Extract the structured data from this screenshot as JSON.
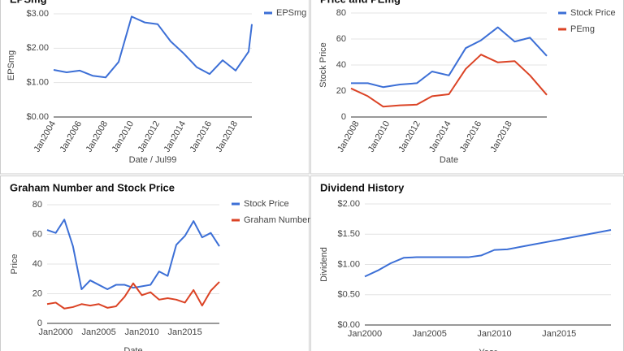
{
  "chart_data": [
    {
      "type": "line",
      "title": "EPSmg",
      "x_label": "Date / Jul99",
      "y_label": "EPSmg",
      "grid": true,
      "x": [
        2004,
        2005,
        2006,
        2007,
        2008,
        2009,
        2010,
        2011,
        2012,
        2013,
        2014,
        2015,
        2016,
        2017,
        2018,
        2019,
        2019.25
      ],
      "series": [
        {
          "name": "EPSmg",
          "color": "#3c6fd6",
          "values": [
            1.37,
            1.3,
            1.35,
            1.2,
            1.15,
            1.6,
            2.92,
            2.75,
            2.7,
            2.2,
            1.85,
            1.45,
            1.25,
            1.65,
            1.35,
            1.9,
            2.7
          ]
        }
      ],
      "xlim": [
        2004,
        2019.25
      ],
      "xticks": [
        {
          "value": 2004,
          "label": "Jan2004"
        },
        {
          "value": 2006,
          "label": "Jan2006"
        },
        {
          "value": 2008,
          "label": "Jan2008"
        },
        {
          "value": 2010,
          "label": "Jan2010"
        },
        {
          "value": 2012,
          "label": "Jan2012"
        },
        {
          "value": 2014,
          "label": "Jan2014"
        },
        {
          "value": 2016,
          "label": "Jan2016"
        },
        {
          "value": 2018,
          "label": "Jan2018"
        }
      ],
      "ylim": [
        0,
        3
      ],
      "yticks": [
        {
          "value": 0,
          "label": "$0.00"
        },
        {
          "value": 1,
          "label": "$1.00"
        },
        {
          "value": 2,
          "label": "$2.00"
        },
        {
          "value": 3,
          "label": "$3.00"
        }
      ]
    },
    {
      "type": "line",
      "title": "Price and PEmg",
      "x_label": "Date",
      "y_label": "Stock Price",
      "grid": true,
      "x": [
        2007.6,
        2008.7,
        2009.7,
        2010.8,
        2011.9,
        2012.9,
        2014.0,
        2015.1,
        2016.1,
        2017.2,
        2018.3,
        2019.3,
        2020.4
      ],
      "series": [
        {
          "name": "Stock Price",
          "color": "#3c6fd6",
          "values": [
            26,
            26,
            23,
            25,
            26,
            35,
            32,
            53,
            59,
            69,
            58,
            61,
            47
          ]
        },
        {
          "name": "PEmg",
          "color": "#db4325",
          "values": [
            22,
            16,
            8,
            9,
            9.5,
            16,
            17.5,
            37,
            48,
            42,
            43,
            32,
            17
          ]
        }
      ],
      "xlim": [
        2007.6,
        2020.4
      ],
      "xticks": [
        {
          "value": 2008,
          "label": "Jan2008"
        },
        {
          "value": 2010,
          "label": "Jan2010"
        },
        {
          "value": 2012,
          "label": "Jan2012"
        },
        {
          "value": 2014,
          "label": "Jan2014"
        },
        {
          "value": 2016,
          "label": "Jan2016"
        },
        {
          "value": 2018,
          "label": "Jan2018"
        }
      ],
      "ylim": [
        0,
        80
      ],
      "yticks": [
        0,
        20,
        40,
        60,
        80
      ]
    },
    {
      "type": "line",
      "title": "Graham Number and Stock Price",
      "x_label": "Date",
      "y_label": "Price",
      "grid": true,
      "x": [
        1999,
        2000,
        2001,
        2002,
        2003,
        2004,
        2005,
        2006,
        2007,
        2008,
        2009,
        2010,
        2011,
        2012,
        2013,
        2014,
        2015,
        2016,
        2017,
        2018,
        2019
      ],
      "series": [
        {
          "name": "Stock Price",
          "color": "#3c6fd6",
          "values": [
            63,
            61,
            70,
            52,
            23,
            29,
            26,
            23,
            26,
            26,
            24,
            25,
            26,
            35,
            32,
            53,
            59,
            69,
            58,
            61,
            52
          ]
        },
        {
          "name": "Graham Number",
          "color": "#db4325",
          "values": [
            13,
            14,
            10,
            11,
            13,
            12,
            13,
            10.5,
            11.5,
            18,
            27,
            19,
            21,
            16,
            17,
            16,
            14,
            22.5,
            12,
            22,
            28
          ]
        }
      ],
      "xlim": [
        1999,
        2019
      ],
      "xticks": [
        {
          "value": 2000,
          "label": "Jan2000"
        },
        {
          "value": 2005,
          "label": "Jan2005"
        },
        {
          "value": 2010,
          "label": "Jan2010"
        },
        {
          "value": 2015,
          "label": "Jan2015"
        }
      ],
      "ylim": [
        0,
        80
      ],
      "yticks": [
        0,
        20,
        40,
        60,
        80
      ]
    },
    {
      "type": "line",
      "title": "Dividend History",
      "x_label": "Year",
      "y_label": "Dividend",
      "grid": true,
      "x": [
        2000,
        2001,
        2002,
        2003,
        2004,
        2005,
        2006,
        2007,
        2008,
        2009,
        2010,
        2011,
        2012,
        2013,
        2014,
        2015,
        2016,
        2017,
        2018,
        2019
      ],
      "series": [
        {
          "color": "#3c6fd6",
          "values": [
            0.8,
            0.9,
            1.02,
            1.11,
            1.12,
            1.12,
            1.12,
            1.12,
            1.12,
            1.15,
            1.24,
            1.25,
            1.29,
            1.33,
            1.37,
            1.41,
            1.45,
            1.49,
            1.53,
            1.57
          ]
        }
      ],
      "xlim": [
        2000,
        2019
      ],
      "xticks": [
        {
          "value": 2000,
          "label": "Jan2000"
        },
        {
          "value": 2005,
          "label": "Jan2005"
        },
        {
          "value": 2010,
          "label": "Jan2010"
        },
        {
          "value": 2015,
          "label": "Jan2015"
        }
      ],
      "ylim": [
        0,
        2
      ],
      "yticks": [
        {
          "value": 0,
          "label": "$0.00"
        },
        {
          "value": 0.5,
          "label": "$0.50"
        },
        {
          "value": 1,
          "label": "$1.00"
        },
        {
          "value": 1.5,
          "label": "$1.50"
        },
        {
          "value": 2,
          "label": "$2.00"
        }
      ]
    }
  ]
}
